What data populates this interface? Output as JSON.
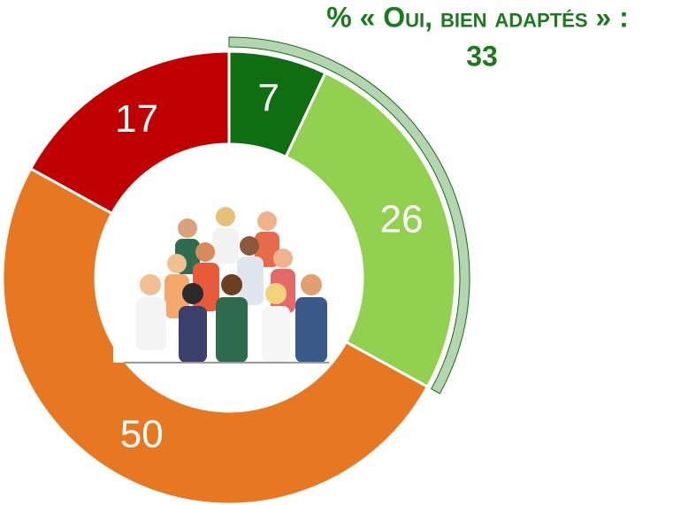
{
  "chart_data": {
    "type": "donut",
    "title": "% « Oui, bien adaptés » :",
    "highlight_value": 33,
    "categories": [
      null,
      null,
      null,
      null
    ],
    "values": [
      7,
      26,
      50,
      17
    ],
    "colors": [
      "#0f6e12",
      "#92d050",
      "#e87722",
      "#c00000"
    ],
    "highlight_color": "#b5d4b0"
  }
}
